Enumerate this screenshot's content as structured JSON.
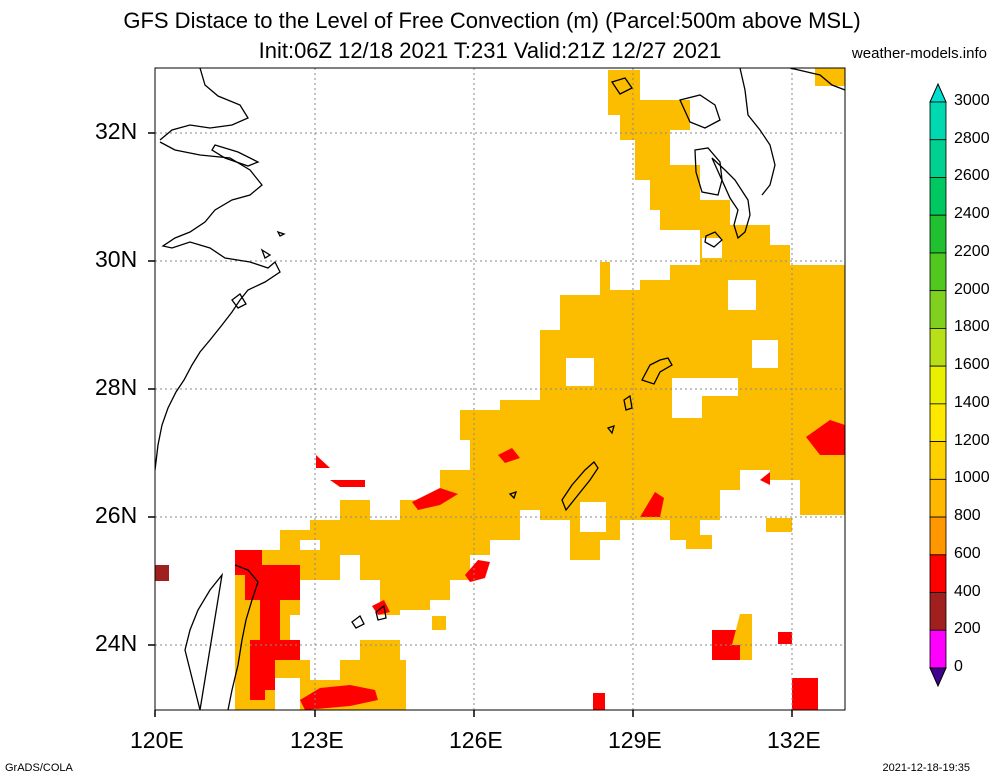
{
  "title_line1": "GFS Distace to the Level of Free Convection (m) (Parcel:500m above MSL)",
  "title_line2": "Init:06Z 12/18 2021 T:231 Valid:21Z 12/27 2021",
  "website": "weather-models.info",
  "footer_left": "GrADS/COLA",
  "footer_right": "2021-12-18-19:35",
  "map": {
    "lon_range": [
      120,
      133
    ],
    "lat_range": [
      23,
      33
    ],
    "lat_ticks": [
      "32N",
      "30N",
      "28N",
      "26N",
      "24N"
    ],
    "lon_ticks": [
      "120E",
      "123E",
      "126E",
      "129E",
      "132E"
    ],
    "gridlines": true
  },
  "colorbar": {
    "labels": [
      "3000",
      "2800",
      "2600",
      "2400",
      "2200",
      "2000",
      "1800",
      "1600",
      "1400",
      "1200",
      "1000",
      "800",
      "600",
      "400",
      "200",
      "0"
    ],
    "colors": [
      "#00e0d0",
      "#00d8b0",
      "#00d090",
      "#00c860",
      "#20c030",
      "#50c820",
      "#80d020",
      "#b8e018",
      "#e8f000",
      "#ffe800",
      "#ffd000",
      "#ffb800",
      "#ff9800",
      "#ff0000",
      "#a02020",
      "#ff00ff",
      "#6000c0",
      "#400090"
    ]
  }
}
